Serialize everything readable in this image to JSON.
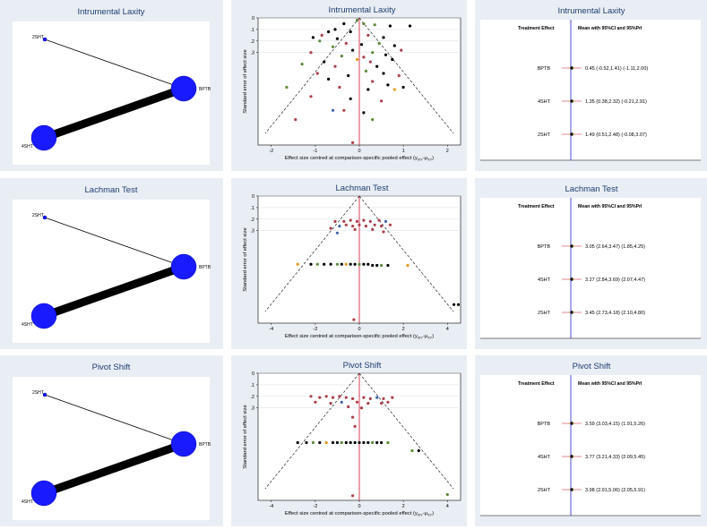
{
  "rows": [
    {
      "title": "Intrumental Laxity",
      "network": {
        "nodes": [
          "2SHT",
          "BPTB",
          "4SHT"
        ]
      },
      "funnel": {
        "ylabel": "Standard error of effect size",
        "xlabel": "Effect size centred at comparison-specific pooled effect (y",
        "xlabel_sub": "iXY",
        "xlabel_sub2": "XY",
        "xticks": [
          "-2",
          "-1",
          "0",
          "1",
          "2"
        ],
        "yticks": [
          "0",
          ".1",
          ".2",
          ".3"
        ]
      },
      "forest": {
        "header_left": "Treatment Effect",
        "header_right": "Mean with 95%CI and 95%PrI",
        "items": [
          {
            "label": "BPTB",
            "text": "0.45 (-0.52,1.41)  (-1.11,2.00)",
            "mean": 0.45
          },
          {
            "label": "4SHT",
            "text": "1.35 (0.38,2.32)  (-0.21,2.91)",
            "mean": 1.35
          },
          {
            "label": "2SHT",
            "text": "1.49 (0.51,2.48)  (-0.08,3.07)",
            "mean": 1.49
          }
        ]
      }
    },
    {
      "title": "Lachman Test",
      "network": {
        "nodes": [
          "2SHT",
          "BPTB",
          "4SHT"
        ]
      },
      "funnel": {
        "ylabel": "Standard error of effect size",
        "xlabel": "Effect size centred at comparison-specific pooled effect (y",
        "xlabel_sub": "iXY",
        "xlabel_sub2": "XY",
        "xticks": [
          "-4",
          "-2",
          "0",
          "2",
          "4"
        ],
        "yticks": [
          "0",
          ".1",
          ".2",
          ".3"
        ]
      },
      "forest": {
        "header_left": "Treatment Effect",
        "header_right": "Mean with 95%CI and 95%PrI",
        "items": [
          {
            "label": "BPTB",
            "text": "3.05 (2.64,3.47)  (1.85,4.25)",
            "mean": 3.05
          },
          {
            "label": "4SHT",
            "text": "3.27 (2.84,3.69)  (2.07,4.47)",
            "mean": 3.27
          },
          {
            "label": "2SHT",
            "text": "3.45 (2.73,4.18)  (2.10,4.80)",
            "mean": 3.45
          }
        ]
      }
    },
    {
      "title": "Pivot Shift",
      "network": {
        "nodes": [
          "2SHT",
          "BPTB",
          "4SHT"
        ]
      },
      "funnel": {
        "ylabel": "Standard error of effect size",
        "xlabel": "Effect size centred at comparison-specific pooled effect (y",
        "xlabel_sub": "iXY",
        "xlabel_sub2": "XY",
        "xticks": [
          "-4",
          "-2",
          "0",
          "2",
          "4"
        ],
        "yticks": [
          "0",
          ".1",
          ".2",
          ".3"
        ]
      },
      "forest": {
        "header_left": "Treatment Effect",
        "header_right": "Mean with 95%CI and 95%PrI",
        "items": [
          {
            "label": "BPTB",
            "text": "3.59 (3.03,4.15)  (1.91,5.26)",
            "mean": 3.59
          },
          {
            "label": "4SHT",
            "text": "3.77 (3.21,4.33)  (2.09,5.45)",
            "mean": 3.77
          },
          {
            "label": "2SHT",
            "text": "3.98 (2.91,5.06)  (2.05,5.91)",
            "mean": 3.98
          }
        ]
      }
    }
  ],
  "chart_data": [
    {
      "type": "scatter",
      "title": "Intrumental Laxity",
      "xlabel": "Effect size centred at comparison-specific pooled effect (yiXY-μXY)",
      "ylabel": "Standard error of effect size",
      "xlim": [
        -2.3,
        2.3
      ],
      "ylim": [
        0,
        1.1
      ],
      "grid": true,
      "points": [
        {
          "x": -1.05,
          "y": 0.17,
          "c": "#000000"
        },
        {
          "x": -0.85,
          "y": 0.15,
          "c": "#ab3f4a"
        },
        {
          "x": -0.7,
          "y": 0.12,
          "c": "#000000"
        },
        {
          "x": -0.55,
          "y": 0.1,
          "c": "#000000"
        },
        {
          "x": -0.35,
          "y": 0.05,
          "c": "#000000"
        },
        {
          "x": -0.2,
          "y": 0.12,
          "c": "#000000"
        },
        {
          "x": 0.1,
          "y": 0.05,
          "c": "#5d8a3c"
        },
        {
          "x": 0.35,
          "y": 0.06,
          "c": "#5d8a3c"
        },
        {
          "x": 0.7,
          "y": 0.07,
          "c": "#000000"
        },
        {
          "x": 1.15,
          "y": 0.07,
          "c": "#000000"
        },
        {
          "x": -0.9,
          "y": 0.2,
          "c": "#5d8a3c"
        },
        {
          "x": -0.5,
          "y": 0.18,
          "c": "#000000"
        },
        {
          "x": 0.2,
          "y": 0.15,
          "c": "#ab3f4a"
        },
        {
          "x": 0.55,
          "y": 0.17,
          "c": "#000000"
        },
        {
          "x": -0.6,
          "y": 0.25,
          "c": "#5d8a3c"
        },
        {
          "x": -0.3,
          "y": 0.22,
          "c": "#ab3f4a"
        },
        {
          "x": 0.05,
          "y": 0.23,
          "c": "#000000"
        },
        {
          "x": 0.45,
          "y": 0.22,
          "c": "#5d8a3c"
        },
        {
          "x": 0.8,
          "y": 0.24,
          "c": "#000000"
        },
        {
          "x": -1.1,
          "y": 0.3,
          "c": "#ab3f4a"
        },
        {
          "x": -0.15,
          "y": 0.28,
          "c": "#000000"
        },
        {
          "x": 0.3,
          "y": 0.3,
          "c": "#5d8a3c"
        },
        {
          "x": 0.95,
          "y": 0.28,
          "c": "#ab3f4a"
        },
        {
          "x": -0.4,
          "y": 0.33,
          "c": "#5d8a3c"
        },
        {
          "x": 0.1,
          "y": 0.34,
          "c": "#ab3f4a"
        },
        {
          "x": 0.6,
          "y": 0.32,
          "c": "#000000"
        },
        {
          "x": -0.8,
          "y": 0.38,
          "c": "#000000"
        },
        {
          "x": -0.05,
          "y": 0.36,
          "c": "#e39a1d"
        },
        {
          "x": 0.25,
          "y": 0.38,
          "c": "#ab3f4a"
        },
        {
          "x": 0.75,
          "y": 0.36,
          "c": "#000000"
        },
        {
          "x": -1.3,
          "y": 0.4,
          "c": "#5d8a3c"
        },
        {
          "x": -0.55,
          "y": 0.42,
          "c": "#ab3f4a"
        },
        {
          "x": 0.4,
          "y": 0.42,
          "c": "#000000"
        },
        {
          "x": -0.95,
          "y": 0.48,
          "c": "#ab3f4a"
        },
        {
          "x": -0.25,
          "y": 0.5,
          "c": "#000000"
        },
        {
          "x": 0.15,
          "y": 0.46,
          "c": "#5d8a3c"
        },
        {
          "x": 0.55,
          "y": 0.48,
          "c": "#000000"
        },
        {
          "x": 0.9,
          "y": 0.5,
          "c": "#ab3f4a"
        },
        {
          "x": -0.7,
          "y": 0.53,
          "c": "#000000"
        },
        {
          "x": 0.3,
          "y": 0.55,
          "c": "#ab3f4a"
        },
        {
          "x": 0.65,
          "y": 0.58,
          "c": "#000000"
        },
        {
          "x": -1.65,
          "y": 0.6,
          "c": "#5d8a3c"
        },
        {
          "x": -0.45,
          "y": 0.6,
          "c": "#ab3f4a"
        },
        {
          "x": 0.2,
          "y": 0.62,
          "c": "#000000"
        },
        {
          "x": 1.0,
          "y": 0.6,
          "c": "#000000"
        },
        {
          "x": 0.8,
          "y": 0.62,
          "c": "#e39a1d"
        },
        {
          "x": -1.1,
          "y": 0.68,
          "c": "#ab3f4a"
        },
        {
          "x": -0.2,
          "y": 0.7,
          "c": "#000000"
        },
        {
          "x": 0.5,
          "y": 0.72,
          "c": "#ab3f4a"
        },
        {
          "x": -0.6,
          "y": 0.8,
          "c": "#3f64a8"
        },
        {
          "x": -0.35,
          "y": 0.8,
          "c": "#ab3f4a"
        },
        {
          "x": 0.1,
          "y": 0.82,
          "c": "#000000"
        },
        {
          "x": -1.45,
          "y": 0.88,
          "c": "#ab3f4a"
        },
        {
          "x": 0.3,
          "y": 0.88,
          "c": "#5d8a3c"
        },
        {
          "x": -0.15,
          "y": 1.08,
          "c": "#ab3f4a"
        },
        {
          "x": -0.05,
          "y": 0.02,
          "c": "#5d8a3c"
        }
      ]
    },
    {
      "type": "scatter",
      "title": "Lachman Test",
      "xlabel": "Effect size centred at comparison-specific pooled effect (yiXY-μXY)",
      "ylabel": "Standard error of effect size",
      "xlim": [
        -4.6,
        4.6
      ],
      "ylim": [
        0,
        1.1
      ],
      "grid": true,
      "points": [
        {
          "x": -1.1,
          "y": 0.22,
          "c": "#ab3f4a"
        },
        {
          "x": -0.7,
          "y": 0.22,
          "c": "#ab3f4a"
        },
        {
          "x": -0.4,
          "y": 0.21,
          "c": "#ab3f4a"
        },
        {
          "x": -0.1,
          "y": 0.22,
          "c": "#ab3f4a"
        },
        {
          "x": 0.2,
          "y": 0.21,
          "c": "#ab3f4a"
        },
        {
          "x": 0.5,
          "y": 0.22,
          "c": "#ab3f4a"
        },
        {
          "x": 0.9,
          "y": 0.21,
          "c": "#ab3f4a"
        },
        {
          "x": 1.2,
          "y": 0.22,
          "c": "#3f64a8"
        },
        {
          "x": -0.9,
          "y": 0.26,
          "c": "#3f64a8"
        },
        {
          "x": -0.6,
          "y": 0.25,
          "c": "#ab3f4a"
        },
        {
          "x": -0.3,
          "y": 0.26,
          "c": "#ab3f4a"
        },
        {
          "x": 0.0,
          "y": 0.25,
          "c": "#ab3f4a"
        },
        {
          "x": 0.3,
          "y": 0.26,
          "c": "#ab3f4a"
        },
        {
          "x": 0.7,
          "y": 0.25,
          "c": "#ab3f4a"
        },
        {
          "x": 1.0,
          "y": 0.26,
          "c": "#ab3f4a"
        },
        {
          "x": 1.4,
          "y": 0.25,
          "c": "#ab3f4a"
        },
        {
          "x": -1.3,
          "y": 0.28,
          "c": "#ab3f4a"
        },
        {
          "x": -0.2,
          "y": 0.29,
          "c": "#ab3f4a"
        },
        {
          "x": 0.6,
          "y": 0.29,
          "c": "#ab3f4a"
        },
        {
          "x": -1.0,
          "y": 0.32,
          "c": "#3f64a8"
        },
        {
          "x": 1.1,
          "y": 0.31,
          "c": "#ab3f4a"
        },
        {
          "x": -2.8,
          "y": 0.59,
          "c": "#e39a1d"
        },
        {
          "x": -2.2,
          "y": 0.59,
          "c": "#000000"
        },
        {
          "x": -1.9,
          "y": 0.59,
          "c": "#5d8a3c"
        },
        {
          "x": -1.6,
          "y": 0.59,
          "c": "#000000"
        },
        {
          "x": -1.3,
          "y": 0.59,
          "c": "#000000"
        },
        {
          "x": -1.0,
          "y": 0.59,
          "c": "#5d8a3c"
        },
        {
          "x": -0.8,
          "y": 0.59,
          "c": "#000000"
        },
        {
          "x": -0.6,
          "y": 0.59,
          "c": "#e39a1d"
        },
        {
          "x": -0.4,
          "y": 0.59,
          "c": "#000000"
        },
        {
          "x": -0.2,
          "y": 0.59,
          "c": "#000000"
        },
        {
          "x": 0.0,
          "y": 0.59,
          "c": "#5d8a3c"
        },
        {
          "x": 0.2,
          "y": 0.59,
          "c": "#000000"
        },
        {
          "x": 0.4,
          "y": 0.59,
          "c": "#000000"
        },
        {
          "x": 0.6,
          "y": 0.6,
          "c": "#000000"
        },
        {
          "x": 0.8,
          "y": 0.6,
          "c": "#000000"
        },
        {
          "x": 1.0,
          "y": 0.6,
          "c": "#5d8a3c"
        },
        {
          "x": 1.3,
          "y": 0.6,
          "c": "#000000"
        },
        {
          "x": 2.2,
          "y": 0.6,
          "c": "#e39a1d"
        },
        {
          "x": 4.3,
          "y": 0.94,
          "c": "#000000"
        },
        {
          "x": 4.5,
          "y": 0.94,
          "c": "#000000"
        },
        {
          "x": -0.25,
          "y": 1.07,
          "c": "#ab3f4a"
        }
      ]
    },
    {
      "type": "scatter",
      "title": "Pivot Shift",
      "xlabel": "Effect size centred at comparison-specific pooled effect (yiXY-μXY)",
      "ylabel": "Standard error of effect size",
      "xlim": [
        -4.6,
        4.6
      ],
      "ylim": [
        0,
        1.1
      ],
      "grid": true,
      "points": [
        {
          "x": -2.2,
          "y": 0.2,
          "c": "#ab3f4a"
        },
        {
          "x": -1.8,
          "y": 0.21,
          "c": "#ab3f4a"
        },
        {
          "x": -1.5,
          "y": 0.2,
          "c": "#ab3f4a"
        },
        {
          "x": -1.2,
          "y": 0.21,
          "c": "#ab3f4a"
        },
        {
          "x": -0.9,
          "y": 0.2,
          "c": "#ab3f4a"
        },
        {
          "x": -0.6,
          "y": 0.21,
          "c": "#ab3f4a"
        },
        {
          "x": -0.3,
          "y": 0.22,
          "c": "#ab3f4a"
        },
        {
          "x": 0.2,
          "y": 0.21,
          "c": "#ab3f4a"
        },
        {
          "x": 0.5,
          "y": 0.22,
          "c": "#ab3f4a"
        },
        {
          "x": 0.8,
          "y": 0.21,
          "c": "#3f64a8"
        },
        {
          "x": 1.1,
          "y": 0.22,
          "c": "#ab3f4a"
        },
        {
          "x": 1.5,
          "y": 0.21,
          "c": "#ab3f4a"
        },
        {
          "x": -2.0,
          "y": 0.25,
          "c": "#ab3f4a"
        },
        {
          "x": -1.3,
          "y": 0.26,
          "c": "#ab3f4a"
        },
        {
          "x": -0.8,
          "y": 0.25,
          "c": "#3f64a8"
        },
        {
          "x": -0.1,
          "y": 0.25,
          "c": "#ab3f4a"
        },
        {
          "x": 0.4,
          "y": 0.26,
          "c": "#ab3f4a"
        },
        {
          "x": 1.0,
          "y": 0.26,
          "c": "#ab3f4a"
        },
        {
          "x": 1.3,
          "y": 0.25,
          "c": "#ab3f4a"
        },
        {
          "x": -0.5,
          "y": 0.29,
          "c": "#ab3f4a"
        },
        {
          "x": 0.1,
          "y": 0.3,
          "c": "#ab3f4a"
        },
        {
          "x": -0.3,
          "y": 0.38,
          "c": "#ab3f4a"
        },
        {
          "x": -0.2,
          "y": 0.46,
          "c": "#ab3f4a"
        },
        {
          "x": -2.8,
          "y": 0.6,
          "c": "#000000"
        },
        {
          "x": -2.4,
          "y": 0.6,
          "c": "#000000"
        },
        {
          "x": -2.1,
          "y": 0.6,
          "c": "#5d8a3c"
        },
        {
          "x": -1.8,
          "y": 0.6,
          "c": "#000000"
        },
        {
          "x": -1.5,
          "y": 0.6,
          "c": "#e39a1d"
        },
        {
          "x": -1.2,
          "y": 0.6,
          "c": "#000000"
        },
        {
          "x": -1.0,
          "y": 0.6,
          "c": "#000000"
        },
        {
          "x": -0.8,
          "y": 0.6,
          "c": "#5d8a3c"
        },
        {
          "x": -0.6,
          "y": 0.6,
          "c": "#000000"
        },
        {
          "x": -0.4,
          "y": 0.6,
          "c": "#000000"
        },
        {
          "x": -0.2,
          "y": 0.6,
          "c": "#000000"
        },
        {
          "x": 0.0,
          "y": 0.6,
          "c": "#000000"
        },
        {
          "x": 0.2,
          "y": 0.6,
          "c": "#000000"
        },
        {
          "x": 0.4,
          "y": 0.6,
          "c": "#000000"
        },
        {
          "x": 0.6,
          "y": 0.6,
          "c": "#5d8a3c"
        },
        {
          "x": 0.8,
          "y": 0.6,
          "c": "#000000"
        },
        {
          "x": 1.0,
          "y": 0.6,
          "c": "#000000"
        },
        {
          "x": 1.3,
          "y": 0.6,
          "c": "#5d8a3c"
        },
        {
          "x": 2.4,
          "y": 0.67,
          "c": "#5d8a3c"
        },
        {
          "x": 2.7,
          "y": 0.67,
          "c": "#000000"
        },
        {
          "x": 4.0,
          "y": 1.05,
          "c": "#5d8a3c"
        },
        {
          "x": -0.3,
          "y": 1.06,
          "c": "#ab3f4a"
        }
      ]
    }
  ]
}
